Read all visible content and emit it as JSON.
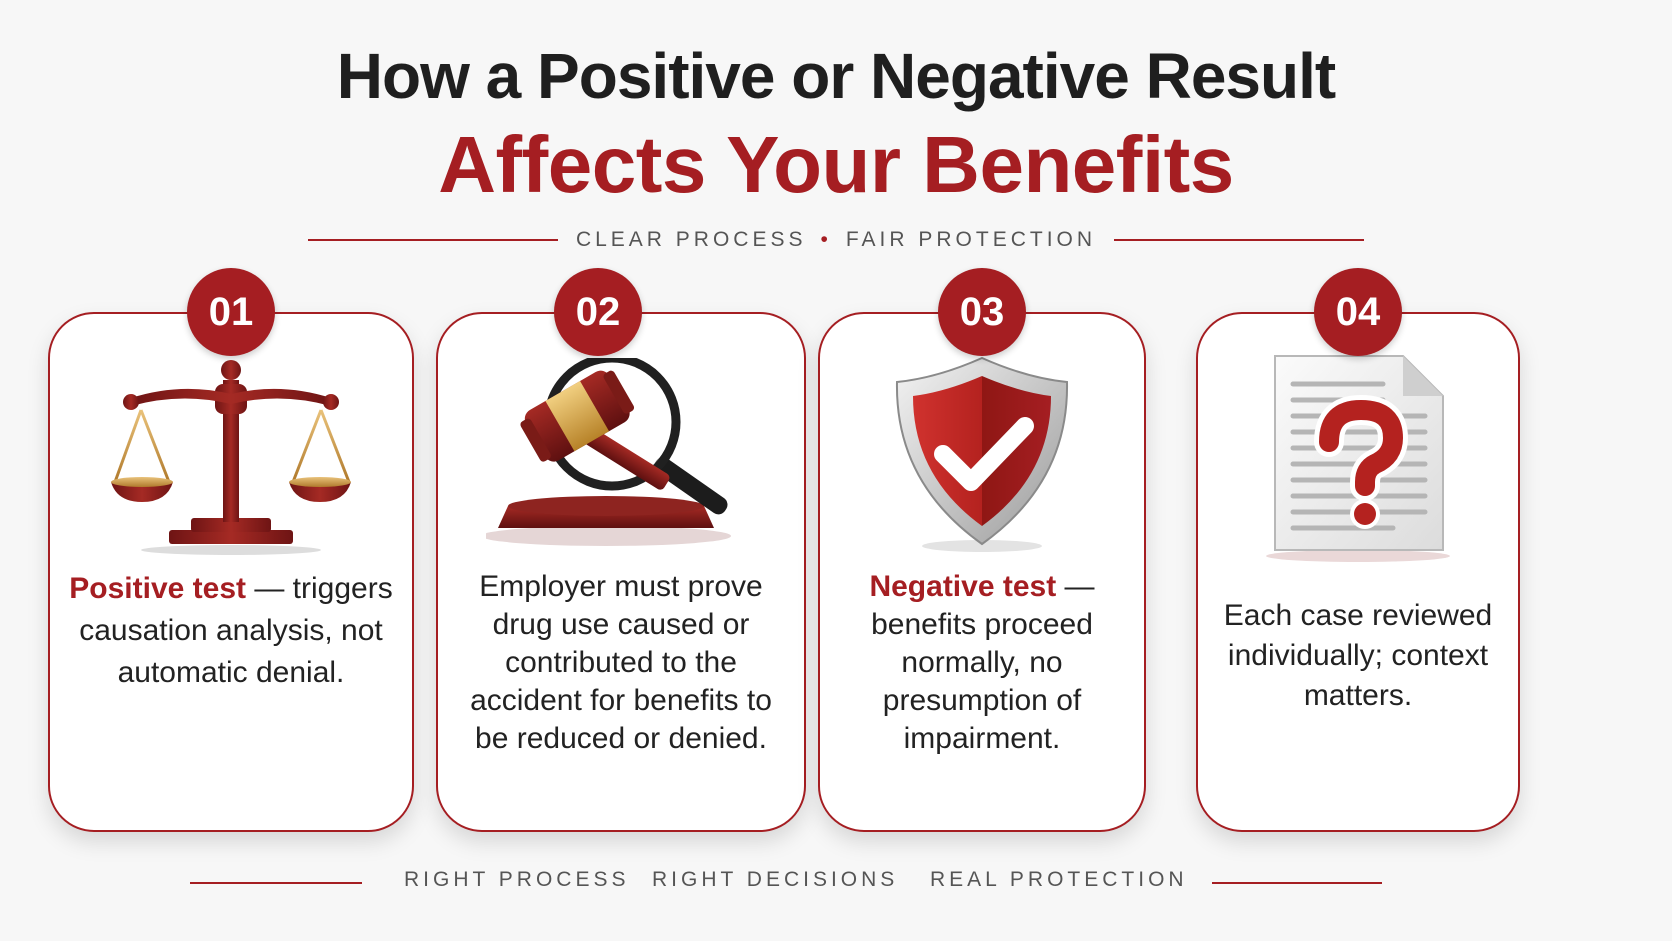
{
  "header": {
    "title_line1": "How a Positive or Negative Result",
    "title_line2": "Affects Your Benefits",
    "subtitle_left": "CLEAR PROCESS",
    "subtitle_right": "FAIR PROTECTION"
  },
  "cards": [
    {
      "number": "01",
      "icon": "scales-of-justice-icon",
      "highlight": "Positive test",
      "text": " — triggers causation analysis, not automatic denial."
    },
    {
      "number": "02",
      "icon": "gavel-magnifier-icon",
      "highlight": "",
      "text": "Employer must prove drug use caused or contributed to the accident for benefits to be reduced or denied."
    },
    {
      "number": "03",
      "icon": "shield-check-icon",
      "highlight": "Negative test",
      "text": " — benefits proceed normally, no presumption of impairment."
    },
    {
      "number": "04",
      "icon": "document-question-icon",
      "highlight": "",
      "text": "Each case reviewed individually; context matters."
    }
  ],
  "footer": {
    "items": [
      "RIGHT PROCESS",
      "RIGHT DECISIONS",
      "REAL PROTECTION"
    ]
  },
  "colors": {
    "accent": "#a51e22",
    "text": "#222222",
    "background": "#f7f7f7"
  }
}
